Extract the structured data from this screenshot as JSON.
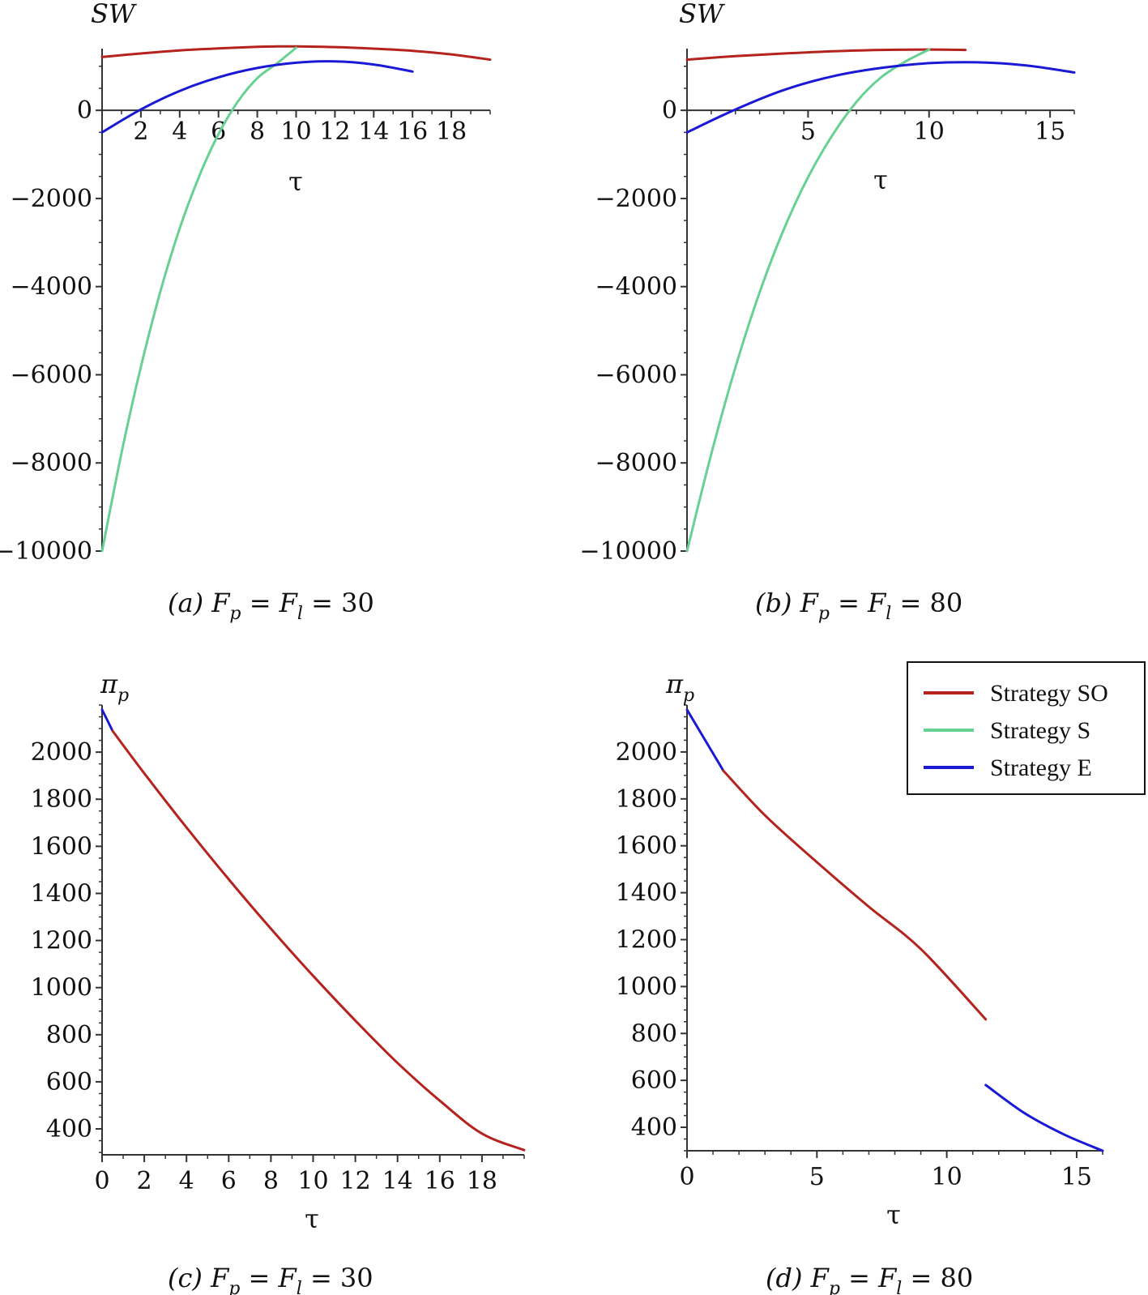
{
  "colors": {
    "so": "#b5231e",
    "s": "#67d193",
    "e": "#1919d6",
    "axis": "#333333"
  },
  "legend": {
    "placement": "right of panel (d), top",
    "items": [
      {
        "key": "so",
        "label": "Strategy SO"
      },
      {
        "key": "s",
        "label": "Strategy S"
      },
      {
        "key": "e",
        "label": "Strategy E"
      }
    ]
  },
  "chart_data": [
    {
      "id": "a",
      "type": "line",
      "caption": {
        "letter": "(a)",
        "var1": "F",
        "sub1": "p",
        "eq1": " = ",
        "var2": "F",
        "sub2": "l",
        "eq2": " = 30"
      },
      "ylabel": "SW",
      "xlabel": "τ",
      "xlim": [
        0,
        20
      ],
      "ylim": [
        -10000,
        1400
      ],
      "xticks": [
        2,
        4,
        6,
        8,
        10,
        12,
        14,
        16,
        18
      ],
      "xtick_labels": [
        "2",
        "4",
        "6",
        "8",
        "10",
        "12",
        "14",
        "16",
        "18"
      ],
      "yticks": [
        0,
        -2000,
        -4000,
        -6000,
        -8000,
        -10000
      ],
      "ytick_labels": [
        "0",
        "-2000",
        "-4000",
        "-6000",
        "-8000",
        "-10000"
      ],
      "grid": false,
      "series": [
        {
          "key": "so",
          "x": [
            0,
            2,
            4,
            6,
            8,
            9,
            10,
            12,
            14,
            16,
            18,
            20
          ],
          "y": [
            1210,
            1290,
            1360,
            1405,
            1440,
            1450,
            1450,
            1435,
            1400,
            1350,
            1270,
            1150
          ]
        },
        {
          "key": "s",
          "x": [
            0,
            1,
            2,
            3,
            4,
            5,
            6,
            7,
            8,
            9,
            10
          ],
          "y": [
            -10000,
            -7780,
            -5820,
            -4120,
            -2680,
            -1500,
            -540,
            200,
            730,
            1060,
            1420
          ]
        },
        {
          "key": "e",
          "x": [
            0,
            2,
            4,
            6,
            8,
            10,
            12,
            14,
            16
          ],
          "y": [
            -500,
            20,
            440,
            750,
            960,
            1080,
            1110,
            1040,
            880
          ]
        }
      ]
    },
    {
      "id": "b",
      "type": "line",
      "caption": {
        "letter": "(b)",
        "var1": "F",
        "sub1": "p",
        "eq1": " = ",
        "var2": "F",
        "sub2": "l",
        "eq2": " = 80"
      },
      "ylabel": "SW",
      "xlabel": "τ",
      "xlim": [
        0,
        16
      ],
      "ylim": [
        -10000,
        1400
      ],
      "xticks": [
        5,
        10,
        15
      ],
      "xtick_labels": [
        "5",
        "10",
        "15"
      ],
      "yticks": [
        0,
        -2000,
        -4000,
        -6000,
        -8000,
        -10000
      ],
      "ytick_labels": [
        "0",
        "-2000",
        "-4000",
        "-6000",
        "-8000",
        "-10000"
      ],
      "grid": false,
      "series": [
        {
          "key": "so",
          "x": [
            0,
            2,
            4,
            6,
            8,
            10,
            11.5
          ],
          "y": [
            1150,
            1230,
            1290,
            1340,
            1370,
            1380,
            1370
          ]
        },
        {
          "key": "s",
          "x": [
            0,
            1,
            2,
            3,
            4,
            5,
            6,
            7,
            8,
            9,
            10
          ],
          "y": [
            -10000,
            -7800,
            -5830,
            -4130,
            -2700,
            -1520,
            -570,
            190,
            740,
            1100,
            1380
          ]
        },
        {
          "key": "e",
          "x": [
            0,
            2,
            4,
            6,
            8,
            10,
            12,
            14,
            16
          ],
          "y": [
            -500,
            20,
            460,
            770,
            960,
            1070,
            1090,
            1020,
            860
          ]
        }
      ]
    },
    {
      "id": "c",
      "type": "line",
      "caption": {
        "letter": "(c)",
        "var1": "F",
        "sub1": "p",
        "eq1": " = ",
        "var2": "F",
        "sub2": "l",
        "eq2": " = 30"
      },
      "ylabel": "π",
      "ylabel_sub": "p",
      "xlabel": "τ",
      "xlim": [
        0,
        20
      ],
      "ylim": [
        290,
        2200
      ],
      "xticks": [
        0,
        2,
        4,
        6,
        8,
        10,
        12,
        14,
        16,
        18
      ],
      "xtick_labels": [
        "0",
        "2",
        "4",
        "6",
        "8",
        "10",
        "12",
        "14",
        "16",
        "18"
      ],
      "yticks": [
        400,
        600,
        800,
        1000,
        1200,
        1400,
        1600,
        1800,
        2000
      ],
      "ytick_labels": [
        "400",
        "600",
        "800",
        "1000",
        "1200",
        "1400",
        "1600",
        "1800",
        "2000"
      ],
      "grid": false,
      "series": [
        {
          "key": "e",
          "x": [
            0,
            0.5
          ],
          "y": [
            2180,
            2090
          ]
        },
        {
          "key": "so",
          "x": [
            0.5,
            2,
            4,
            6,
            8,
            10,
            12,
            14,
            16,
            18,
            20
          ],
          "y": [
            2090,
            1910,
            1680,
            1460,
            1250,
            1050,
            860,
            680,
            520,
            380,
            310
          ]
        }
      ]
    },
    {
      "id": "d",
      "type": "line",
      "caption": {
        "letter": "(d)",
        "var1": "F",
        "sub1": "p",
        "eq1": " = ",
        "var2": "F",
        "sub2": "l",
        "eq2": " = 80"
      },
      "ylabel": "π",
      "ylabel_sub": "p",
      "xlabel": "τ",
      "xlim": [
        0,
        16
      ],
      "ylim": [
        300,
        2200
      ],
      "xticks": [
        0,
        5,
        10,
        15
      ],
      "xtick_labels": [
        "0",
        "5",
        "10",
        "15"
      ],
      "yticks": [
        400,
        600,
        800,
        1000,
        1200,
        1400,
        1600,
        1800,
        2000
      ],
      "ytick_labels": [
        "400",
        "600",
        "800",
        "1000",
        "1200",
        "1400",
        "1600",
        "1800",
        "2000"
      ],
      "grid": false,
      "series": [
        {
          "key": "e",
          "x": [
            0,
            1.4
          ],
          "y": [
            2180,
            1920
          ]
        },
        {
          "key": "so",
          "x": [
            1.4,
            3,
            5,
            7,
            9,
            11.5
          ],
          "y": [
            1920,
            1730,
            1530,
            1340,
            1160,
            860
          ]
        },
        {
          "key": "e",
          "x": [
            11.5,
            13,
            14.5,
            16
          ],
          "y": [
            580,
            460,
            370,
            300
          ]
        }
      ]
    }
  ]
}
